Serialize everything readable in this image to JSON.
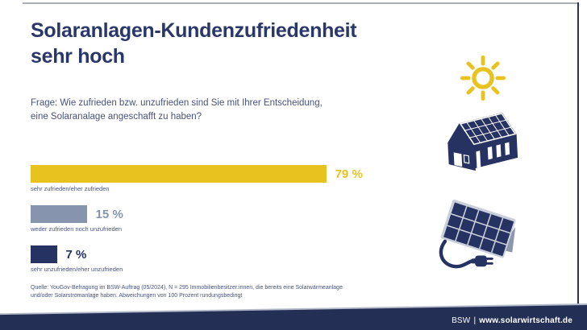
{
  "title": {
    "line1": "Solaranlagen-Kundenzufriedenheit",
    "line2": "sehr hoch"
  },
  "question": {
    "line1": "Frage: Wie zufrieden bzw. unzufrieden sind Sie mit Ihrer Entscheidung,",
    "line2": "eine Solaranalage angeschafft zu haben?"
  },
  "chart_data": {
    "type": "bar",
    "orientation": "horizontal",
    "title": "Solaranlagen-Kundenzufriedenheit sehr hoch",
    "categories": [
      "sehr zufrieden/eher zufrieden",
      "weder zufrieden noch unzufrieden",
      "sehr unzufrieden/eher unzufrieden"
    ],
    "values": [
      79,
      15,
      7
    ],
    "value_labels": [
      "79 %",
      "15 %",
      "7 %"
    ],
    "unit": "%",
    "xlim": [
      0,
      100
    ],
    "colors": [
      "#e8c31f",
      "#8695ad",
      "#263262"
    ],
    "grid": false,
    "legend": false
  },
  "source": {
    "line1": "Quelle: YouGov-Befragung im BSW-Auftrag (05/2024), N = 295 Immobilienbesitzer:innen, die bereits eine Solarwärmeanlage",
    "line2": "und/oder Solarstromanlage haben. Abweichungen von 100 Prozent rundungsbedingt"
  },
  "footer": {
    "org": "BSW",
    "separator": "|",
    "url": "www.solarwirtschaft.de"
  },
  "icons": [
    {
      "name": "sun-icon",
      "color": "#e8c31f"
    },
    {
      "name": "solar-house-icon",
      "color": "#263262"
    },
    {
      "name": "solar-panel-plug-icon",
      "color": "#263262"
    }
  ],
  "colors": {
    "navy": "#263262",
    "band_navy": "#242f56",
    "yellow": "#e8c31f",
    "blue_gray": "#8695ad",
    "title_text": "#2a3769",
    "body_text": "#47527c",
    "frame_gray": "#a9aeb9",
    "footer_text": "#ffffff"
  }
}
